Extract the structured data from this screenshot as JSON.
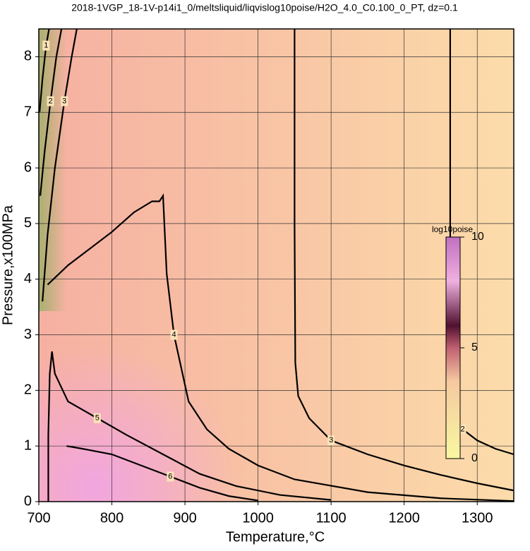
{
  "chart_data": {
    "type": "contour",
    "title": "2018-1VGP_18-1V-p14i1_0/meltsliquid/liqvislog10poise/H2O_4.0_C0.100_0_PT, dz=0.1",
    "x_label": "Temperature,°C",
    "y_label": "Pressure,x100MPa",
    "xlim": [
      700,
      1350
    ],
    "ylim": [
      0,
      8.5
    ],
    "xticks": [
      700,
      800,
      900,
      1000,
      1100,
      1200,
      1300
    ],
    "yticks": [
      0,
      1,
      2,
      3,
      4,
      5,
      6,
      7,
      8
    ],
    "grid": true,
    "contours": [
      {
        "level": 4,
        "x": [
          712,
          740,
          770,
          800,
          830,
          855,
          865,
          870,
          875,
          885,
          905,
          930,
          960,
          1000,
          1050,
          1150,
          1250,
          1350
        ],
        "y": [
          3.9,
          4.25,
          4.55,
          4.85,
          5.2,
          5.4,
          5.4,
          5.5,
          4.1,
          3.0,
          1.8,
          1.3,
          0.95,
          0.65,
          0.4,
          0.17,
          0.06,
          0.01
        ]
      },
      {
        "level": 3,
        "x": [
          1050,
          1050,
          1051,
          1055,
          1070,
          1100,
          1150,
          1200,
          1250,
          1300,
          1350
        ],
        "y": [
          8.5,
          5.0,
          2.5,
          1.9,
          1.5,
          1.1,
          0.85,
          0.65,
          0.48,
          0.33,
          0.2
        ]
      },
      {
        "level": 2,
        "x": [
          1263,
          1263,
          1263,
          1266,
          1280,
          1300,
          1325,
          1350
        ],
        "y": [
          8.5,
          5.0,
          2.0,
          1.6,
          1.3,
          1.1,
          0.95,
          0.85
        ]
      },
      {
        "level": 5,
        "x": [
          713,
          713,
          715,
          718,
          722,
          740,
          780,
          820,
          870,
          920,
          970,
          1030,
          1100
        ],
        "y": [
          0,
          1.2,
          2.3,
          2.7,
          2.3,
          1.8,
          1.5,
          1.2,
          0.85,
          0.5,
          0.28,
          0.12,
          0.03
        ]
      },
      {
        "level": 6,
        "x": [
          738,
          760,
          800,
          840,
          880,
          920,
          960,
          1000
        ],
        "y": [
          1.0,
          0.95,
          0.85,
          0.65,
          0.45,
          0.25,
          0.1,
          0.02
        ]
      },
      {
        "level": 3,
        "x": [
          705,
          712,
          722,
          735,
          745,
          752
        ],
        "y": [
          3.6,
          4.8,
          6.0,
          7.2,
          8.0,
          8.5
        ]
      },
      {
        "level": 2,
        "x": [
          702,
          708,
          716,
          724,
          731
        ],
        "y": [
          5.5,
          6.3,
          7.2,
          8.0,
          8.5
        ]
      },
      {
        "level": 1,
        "x": [
          701,
          705,
          710,
          714
        ],
        "y": [
          7.0,
          7.6,
          8.2,
          8.5
        ]
      }
    ],
    "colorbar": {
      "label": "log10poise",
      "lim": [
        0,
        10
      ],
      "ticks": [
        0,
        5,
        10
      ]
    }
  }
}
